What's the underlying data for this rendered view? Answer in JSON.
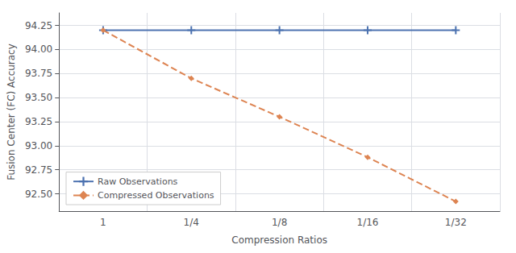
{
  "chart_data": {
    "type": "line",
    "xlabel": "Compression Ratios",
    "ylabel": "Fusion Center (FC) Accuracy",
    "categories": [
      "1",
      "1/4",
      "1/8",
      "1/16",
      "1/32"
    ],
    "series": [
      {
        "name": "Raw Observations",
        "color": "#4c72b0",
        "marker": "plus",
        "line_style": "solid",
        "values": [
          94.2,
          94.2,
          94.2,
          94.2,
          94.2
        ]
      },
      {
        "name": "Compressed Observations",
        "color": "#dd8452",
        "marker": "diamond",
        "line_style": "dashed",
        "values": [
          94.2,
          93.7,
          93.3,
          92.88,
          92.42
        ]
      }
    ],
    "ylim": [
      92.32,
      94.38
    ],
    "yticks": [
      {
        "value": 92.5,
        "label": "92.50"
      },
      {
        "value": 92.75,
        "label": "92.75"
      },
      {
        "value": 93.0,
        "label": "93.00"
      },
      {
        "value": 93.25,
        "label": "93.25"
      },
      {
        "value": 93.5,
        "label": "93.50"
      },
      {
        "value": 93.75,
        "label": "93.75"
      },
      {
        "value": 94.0,
        "label": "94.00"
      },
      {
        "value": 94.25,
        "label": "94.25"
      }
    ],
    "grid": true,
    "legend": "lower left"
  }
}
